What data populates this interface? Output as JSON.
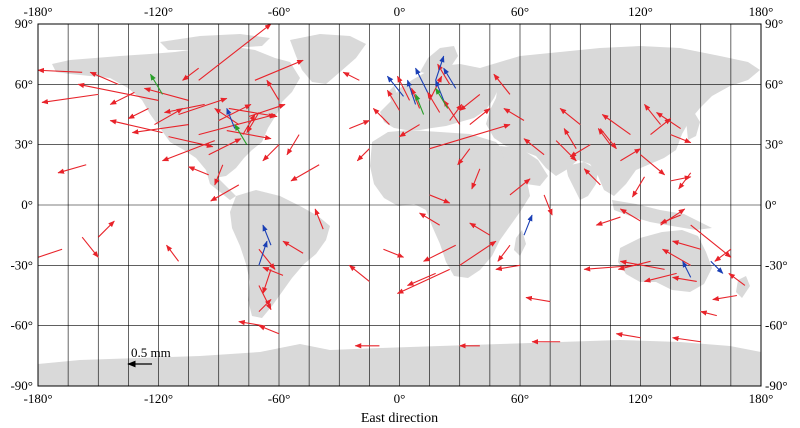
{
  "x_label": "East direction",
  "lon_labels": [
    "-180°",
    "-120°",
    "-60°",
    "0°",
    "60°",
    "120°",
    "180°"
  ],
  "lat_labels": [
    "90°",
    "60°",
    "30°",
    "0°",
    "-30°",
    "-60°",
    "-90°"
  ],
  "scale_label": "0.5 mm",
  "colors": {
    "land": "#d9d9d9",
    "series_a": "#e8232a",
    "series_b": "#1a3fb5",
    "series_c": "#2aa02a"
  },
  "vectors": [
    [
      -158,
      66,
      -22,
      1,
      "a"
    ],
    [
      -150,
      55,
      -28,
      -4,
      "a"
    ],
    [
      -132,
      56,
      -12,
      -6,
      "a"
    ],
    [
      -120,
      52,
      -40,
      8,
      "a"
    ],
    [
      -118,
      36,
      -26,
      6,
      "a"
    ],
    [
      -115,
      34,
      22,
      -5,
      "a"
    ],
    [
      -105,
      40,
      -28,
      -4,
      "a"
    ],
    [
      -100,
      35,
      38,
      10,
      "a"
    ],
    [
      -92,
      32,
      -26,
      -10,
      "a"
    ],
    [
      -90,
      42,
      16,
      8,
      "a"
    ],
    [
      -86,
      37,
      22,
      -4,
      "a"
    ],
    [
      -80,
      40,
      -12,
      8,
      "a"
    ],
    [
      -75,
      44,
      18,
      6,
      "a"
    ],
    [
      -70,
      46,
      -6,
      -10,
      "a"
    ],
    [
      -97,
      50,
      -20,
      -4,
      "a"
    ],
    [
      -110,
      45,
      24,
      8,
      "a"
    ],
    [
      -125,
      48,
      -10,
      -5,
      "a"
    ],
    [
      -88,
      20,
      -4,
      -10,
      "a"
    ],
    [
      -80,
      10,
      -14,
      -8,
      "a"
    ],
    [
      -95,
      15,
      -10,
      4,
      "a"
    ],
    [
      -140,
      60,
      -14,
      6,
      "a"
    ],
    [
      -100,
      62,
      36,
      28,
      "a"
    ],
    [
      -72,
      62,
      24,
      10,
      "a"
    ],
    [
      -60,
      52,
      -6,
      10,
      "a"
    ],
    [
      -78,
      35,
      6,
      10,
      "a"
    ],
    [
      -168,
      -22,
      -18,
      -6,
      "a"
    ],
    [
      -158,
      -16,
      8,
      -10,
      "a"
    ],
    [
      -156,
      20,
      -14,
      -4,
      "a"
    ],
    [
      -110,
      -28,
      -6,
      8,
      "a"
    ],
    [
      -150,
      -16,
      8,
      8,
      "a"
    ],
    [
      -70,
      -22,
      8,
      -10,
      "a"
    ],
    [
      -64,
      -32,
      -4,
      -12,
      "a"
    ],
    [
      -70,
      -40,
      6,
      -12,
      "a"
    ],
    [
      -58,
      -35,
      -10,
      4,
      "a"
    ],
    [
      -48,
      -24,
      -10,
      6,
      "a"
    ],
    [
      -38,
      -12,
      -4,
      10,
      "a"
    ],
    [
      -70,
      -53,
      6,
      6,
      "a"
    ],
    [
      -68,
      -60,
      -12,
      2,
      "a"
    ],
    [
      -40,
      20,
      -14,
      -8,
      "a"
    ],
    [
      -15,
      -38,
      -10,
      8,
      "a"
    ],
    [
      -8,
      -22,
      10,
      -4,
      "a"
    ],
    [
      -25,
      38,
      10,
      4,
      "a"
    ],
    [
      -15,
      28,
      -6,
      -6,
      "a"
    ],
    [
      -5,
      40,
      -8,
      8,
      "a"
    ],
    [
      0,
      47,
      -6,
      10,
      "a"
    ],
    [
      5,
      52,
      -6,
      12,
      "a"
    ],
    [
      10,
      48,
      -4,
      10,
      "a"
    ],
    [
      15,
      52,
      6,
      12,
      "a"
    ],
    [
      20,
      46,
      -6,
      10,
      "a"
    ],
    [
      25,
      42,
      6,
      8,
      "a"
    ],
    [
      30,
      40,
      -8,
      12,
      "a"
    ],
    [
      35,
      40,
      10,
      8,
      "a"
    ],
    [
      10,
      40,
      -10,
      -6,
      "a"
    ],
    [
      15,
      28,
      40,
      12,
      "a"
    ],
    [
      35,
      28,
      -6,
      -8,
      "a"
    ],
    [
      40,
      18,
      -4,
      -10,
      "a"
    ],
    [
      15,
      5,
      10,
      -4,
      "a"
    ],
    [
      20,
      -10,
      -10,
      6,
      "a"
    ],
    [
      28,
      -20,
      -16,
      -8,
      "a"
    ],
    [
      30,
      -30,
      18,
      12,
      "a"
    ],
    [
      25,
      -32,
      -26,
      -12,
      "a"
    ],
    [
      18,
      -34,
      -14,
      -6,
      "a"
    ],
    [
      45,
      -15,
      -10,
      6,
      "a"
    ],
    [
      55,
      -20,
      -6,
      -8,
      "a"
    ],
    [
      60,
      -30,
      -12,
      -2,
      "a"
    ],
    [
      75,
      -48,
      -12,
      2,
      "a"
    ],
    [
      55,
      5,
      10,
      8,
      "a"
    ],
    [
      72,
      5,
      4,
      -10,
      "a"
    ],
    [
      72,
      25,
      -10,
      8,
      "a"
    ],
    [
      78,
      32,
      10,
      -10,
      "a"
    ],
    [
      88,
      28,
      -6,
      10,
      "a"
    ],
    [
      90,
      40,
      -10,
      8,
      "a"
    ],
    [
      100,
      38,
      8,
      -10,
      "a"
    ],
    [
      105,
      30,
      -6,
      8,
      "a"
    ],
    [
      110,
      22,
      10,
      6,
      "a"
    ],
    [
      115,
      35,
      -14,
      10,
      "a"
    ],
    [
      120,
      25,
      12,
      -10,
      "a"
    ],
    [
      125,
      35,
      10,
      8,
      "a"
    ],
    [
      130,
      40,
      -8,
      10,
      "a"
    ],
    [
      135,
      35,
      10,
      -4,
      "a"
    ],
    [
      140,
      38,
      -12,
      8,
      "a"
    ],
    [
      122,
      14,
      -6,
      -10,
      "a"
    ],
    [
      135,
      12,
      10,
      2,
      "a"
    ],
    [
      145,
      16,
      -6,
      -8,
      "a"
    ],
    [
      110,
      -6,
      -12,
      -4,
      "a"
    ],
    [
      120,
      -8,
      -10,
      6,
      "a"
    ],
    [
      130,
      -10,
      12,
      8,
      "a"
    ],
    [
      140,
      -5,
      -10,
      -4,
      "a"
    ],
    [
      145,
      -10,
      20,
      -16,
      "a"
    ],
    [
      118,
      -30,
      -26,
      -2,
      "a"
    ],
    [
      125,
      -28,
      -16,
      -4,
      "a"
    ],
    [
      132,
      -32,
      -22,
      4,
      "a"
    ],
    [
      138,
      -34,
      -16,
      -4,
      "a"
    ],
    [
      145,
      -30,
      -14,
      8,
      "a"
    ],
    [
      148,
      -38,
      -12,
      2,
      "a"
    ],
    [
      150,
      -22,
      -14,
      4,
      "a"
    ],
    [
      165,
      -22,
      -8,
      -6,
      "a"
    ],
    [
      172,
      -40,
      -8,
      6,
      "a"
    ],
    [
      168,
      -45,
      -12,
      -2,
      "a"
    ],
    [
      158,
      -55,
      -8,
      2,
      "a"
    ],
    [
      80,
      -68,
      -14,
      0,
      "a"
    ],
    [
      120,
      -66,
      -12,
      2,
      "a"
    ],
    [
      150,
      -68,
      -14,
      2,
      "a"
    ],
    [
      40,
      -70,
      -10,
      0,
      "a"
    ],
    [
      -10,
      -70,
      -12,
      0,
      "a"
    ],
    [
      -60,
      -64,
      -10,
      4,
      "a"
    ],
    [
      100,
      10,
      -8,
      8,
      "a"
    ],
    [
      95,
      30,
      -10,
      -6,
      "a"
    ],
    [
      62,
      42,
      -10,
      6,
      "a"
    ],
    [
      55,
      55,
      -8,
      10,
      "a"
    ],
    [
      40,
      55,
      -10,
      -8,
      "a"
    ],
    [
      25,
      60,
      -6,
      10,
      "a"
    ],
    [
      -95,
      25,
      16,
      8,
      "a"
    ],
    [
      -85,
      48,
      24,
      -4,
      "a"
    ],
    [
      -122,
      40,
      14,
      8,
      "a"
    ],
    [
      -105,
      52,
      -22,
      6,
      "a"
    ],
    [
      -60,
      30,
      -8,
      -8,
      "a"
    ],
    [
      -50,
      35,
      -6,
      -10,
      "a"
    ],
    [
      -20,
      62,
      -8,
      4,
      "a"
    ],
    [
      -100,
      68,
      -8,
      -6,
      "a"
    ],
    [
      8,
      50,
      -4,
      12,
      "b"
    ],
    [
      14,
      56,
      -6,
      12,
      "b"
    ],
    [
      22,
      52,
      -4,
      10,
      "b"
    ],
    [
      2,
      54,
      -8,
      10,
      "b"
    ],
    [
      28,
      58,
      -6,
      10,
      "b"
    ],
    [
      18,
      62,
      4,
      12,
      "b"
    ],
    [
      -82,
      38,
      -4,
      10,
      "b"
    ],
    [
      -64,
      -20,
      -4,
      10,
      "b"
    ],
    [
      -70,
      -30,
      4,
      12,
      "b"
    ],
    [
      145,
      -36,
      -4,
      8,
      "b"
    ],
    [
      155,
      -28,
      6,
      -6,
      "b"
    ],
    [
      62,
      -15,
      4,
      10,
      "b"
    ],
    [
      12,
      45,
      -4,
      10,
      "c"
    ],
    [
      24,
      48,
      -6,
      10,
      "c"
    ],
    [
      -118,
      55,
      -6,
      10,
      "c"
    ],
    [
      -76,
      30,
      -6,
      10,
      "c"
    ]
  ]
}
